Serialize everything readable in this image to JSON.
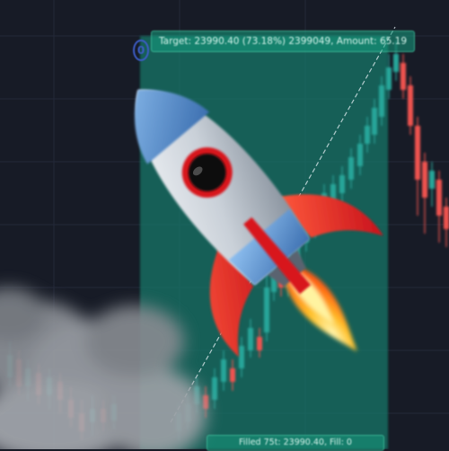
{
  "chart": {
    "target_label": "Target: 23990.40 (73.18%) 2399049, Amount: 65.19",
    "bottom_label": "Filled 75t: 23990.40, Fill: 0",
    "marker_label": "0",
    "colors": {
      "background": "#171b26",
      "zone": "#127a6a",
      "up": "#26a69a",
      "down": "#ef5350"
    }
  },
  "overlay": {
    "emoji": "rocket-icon",
    "smoke": "smoke-cloud"
  }
}
